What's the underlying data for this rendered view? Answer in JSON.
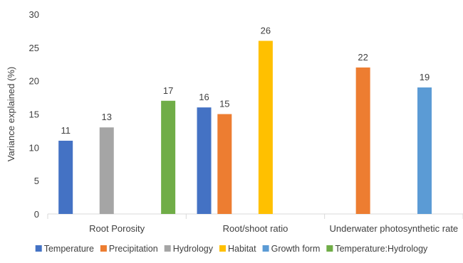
{
  "chart_data": {
    "type": "bar",
    "ylabel": "Variance explained (%)",
    "ylim": [
      0,
      30
    ],
    "yticks": [
      0,
      5,
      10,
      15,
      20,
      25,
      30
    ],
    "grid": false,
    "legend_position": "bottom",
    "categories": [
      "Root Porosity",
      "Root/shoot ratio",
      "Underwater photosynthetic rate"
    ],
    "series": [
      {
        "name": "Temperature",
        "color": "#4472C4",
        "values": [
          11,
          16,
          null
        ]
      },
      {
        "name": "Precipitation",
        "color": "#ED7D31",
        "values": [
          null,
          15,
          22
        ]
      },
      {
        "name": "Hydrology",
        "color": "#A5A5A5",
        "values": [
          13,
          null,
          null
        ]
      },
      {
        "name": "Habitat",
        "color": "#FFC000",
        "values": [
          null,
          26,
          null
        ]
      },
      {
        "name": "Growth form",
        "color": "#5B9BD5",
        "values": [
          null,
          null,
          19
        ]
      },
      {
        "name": "Temperature:Hydrology",
        "color": "#70AD47",
        "values": [
          17,
          null,
          null
        ]
      }
    ]
  }
}
